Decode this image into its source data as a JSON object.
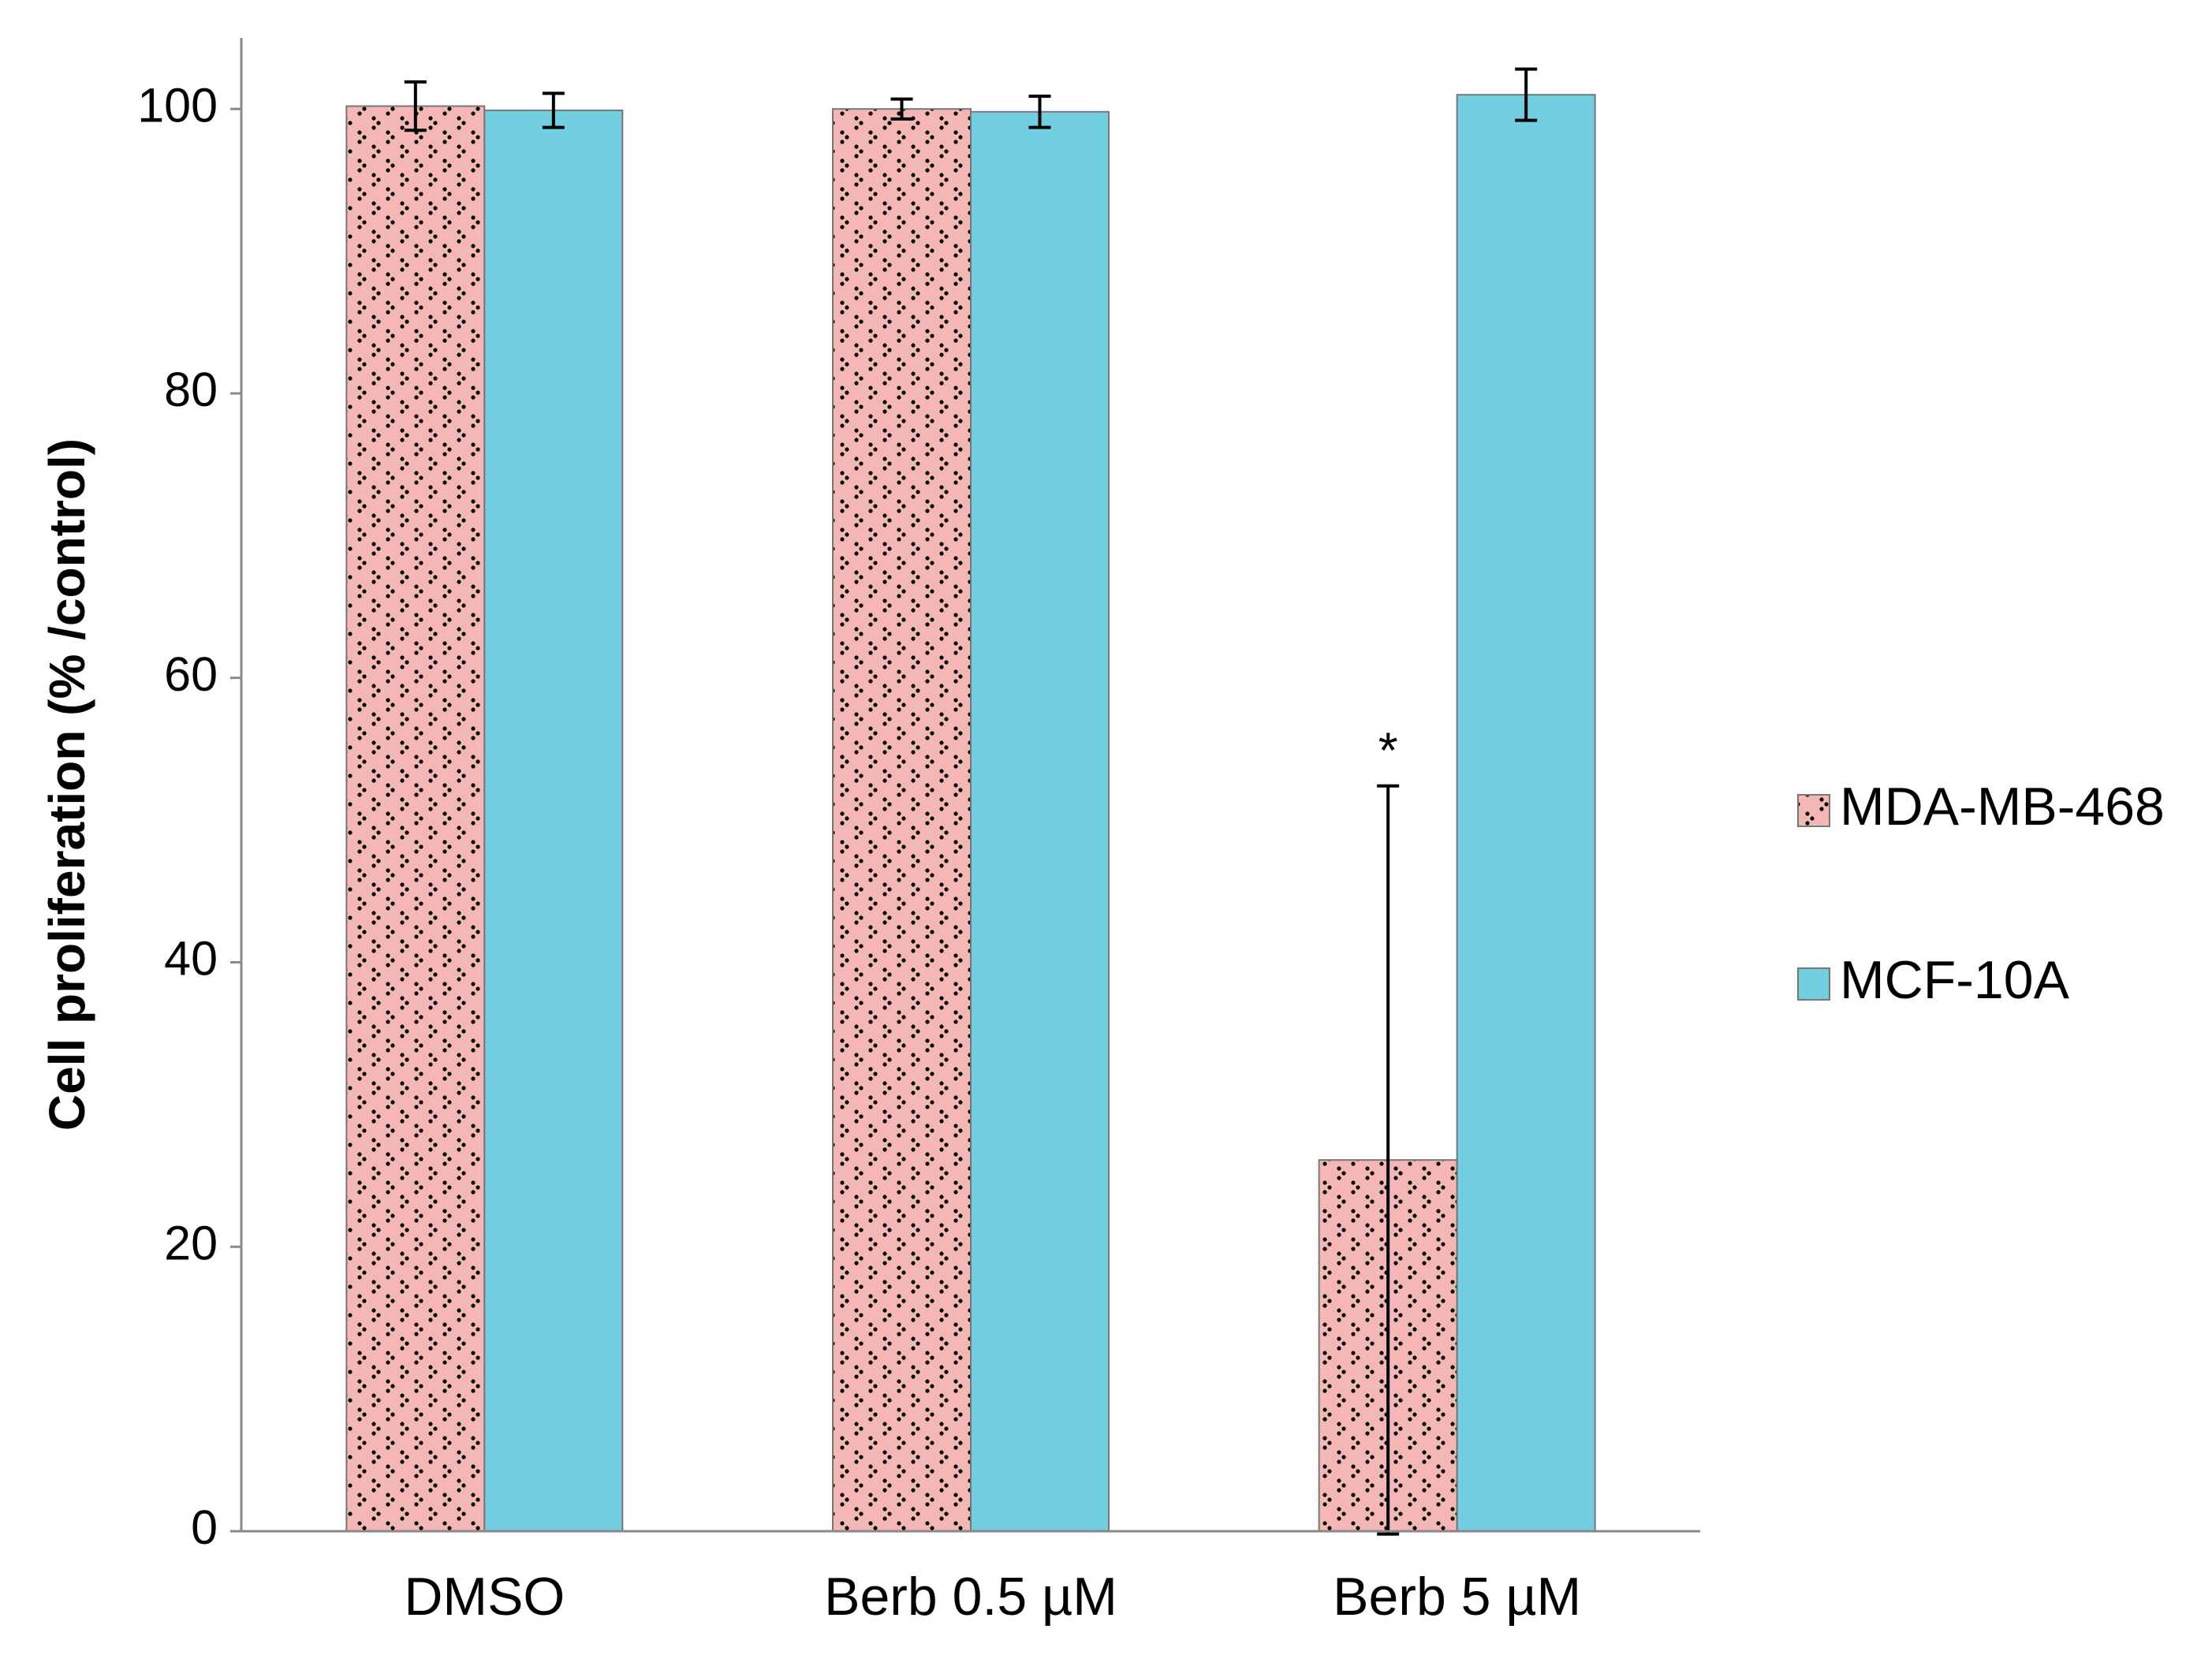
{
  "chart_data": {
    "type": "bar",
    "y_label": "Cell proliferation (% /control)",
    "categories": [
      "DMSO",
      "Berb 0.5 µM",
      "Berb 5 µM"
    ],
    "series": [
      {
        "name": "MDA-MB-468",
        "color": "#f4b7b5",
        "pattern": "dots",
        "values": [
          100.2,
          100,
          26.1
        ],
        "errors": [
          1.7,
          0.7,
          26.3
        ]
      },
      {
        "name": "MCF-10A",
        "color": "#72cfe1",
        "values": [
          99.9,
          99.8,
          101
        ],
        "errors": [
          1.2,
          1.1,
          1.8
        ]
      }
    ],
    "annotations": [
      {
        "text": "*",
        "series": 0,
        "category": 2
      }
    ],
    "ylim": [
      0,
      105
    ],
    "yticks": [
      0,
      20,
      40,
      60,
      80,
      100
    ],
    "grid": false,
    "legend": "right"
  }
}
